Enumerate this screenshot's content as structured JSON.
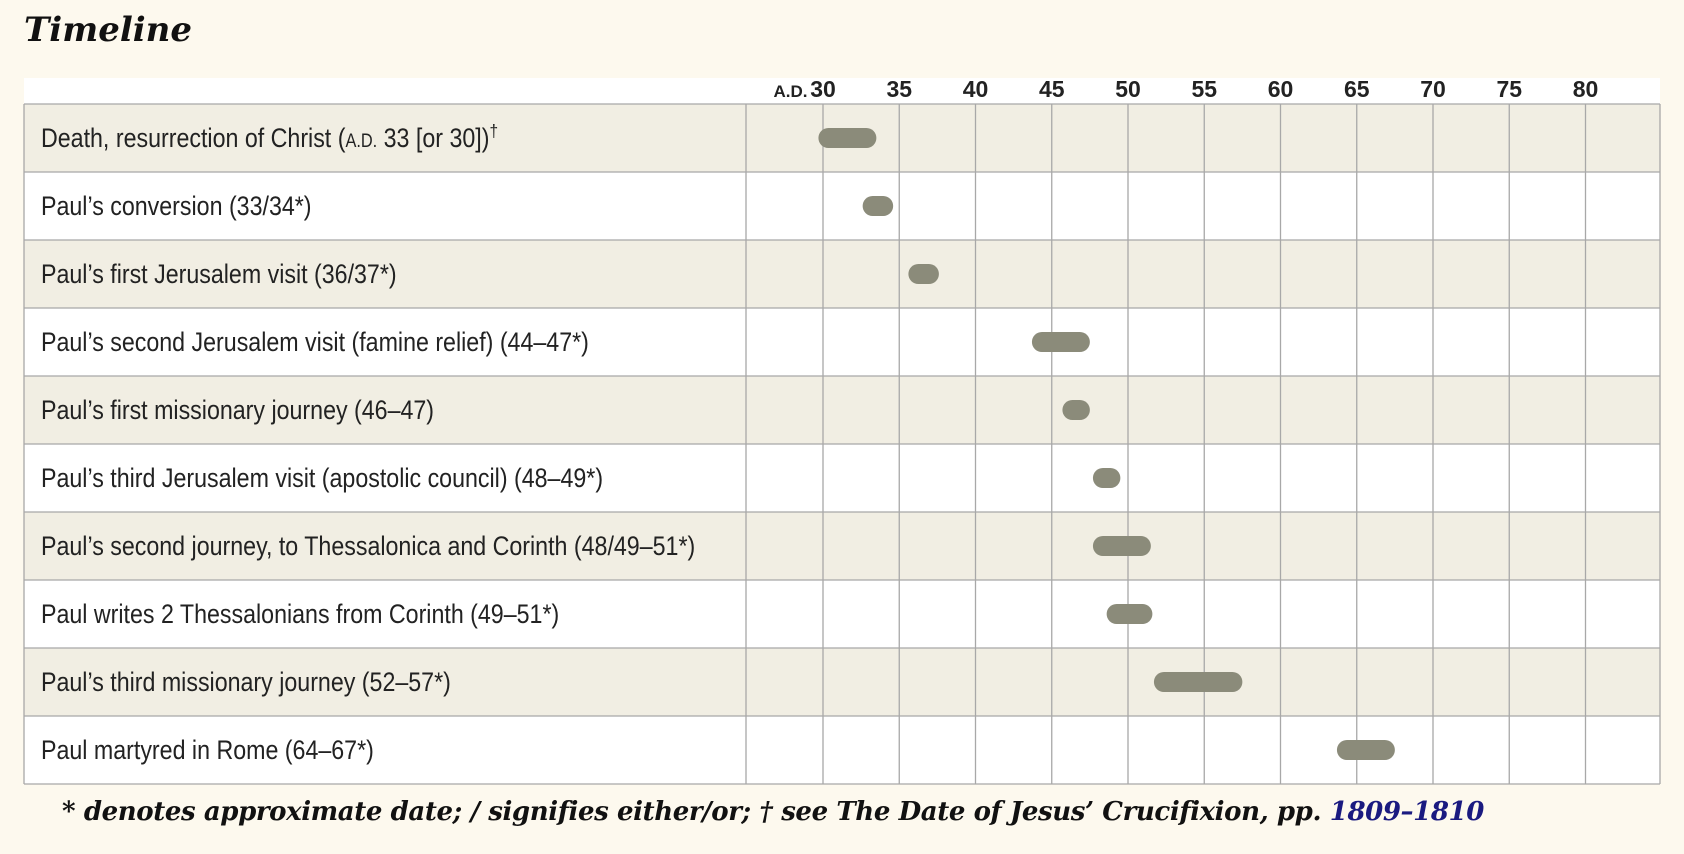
{
  "title": "Timeline",
  "colors": {
    "page_bg": "#fdf9ee",
    "row_shaded": "#f1eee3",
    "row_plain": "#ffffff",
    "grid": "#a8a8a8",
    "bar": "#8b8b7a",
    "link": "#1a1a80"
  },
  "chart_data": {
    "type": "bar",
    "orientation": "horizontal-range",
    "axis_prefix_label": "A.D.",
    "x_ticks": [
      30,
      35,
      40,
      45,
      50,
      55,
      60,
      65,
      70,
      75,
      80
    ],
    "xlim": [
      25,
      85
    ],
    "grid": true,
    "rows": [
      {
        "label": "Death, resurrection of Christ (",
        "smallcaps": "A.D.",
        "label_end": " 33 [or 30])",
        "sup": "†",
        "start": 29.7,
        "end": 33.5
      },
      {
        "label": "Paul’s conversion (33/34*)",
        "start": 32.6,
        "end": 34.6
      },
      {
        "label": "Paul’s first Jerusalem visit (36/37*)",
        "start": 35.6,
        "end": 37.6
      },
      {
        "label": "Paul’s second Jerusalem visit (famine relief) (44–47*)",
        "start": 43.7,
        "end": 47.5
      },
      {
        "label": "Paul’s first missionary journey (46–47)",
        "start": 45.7,
        "end": 47.5
      },
      {
        "label": "Paul’s third Jerusalem visit (apostolic council) (48–49*)",
        "start": 47.7,
        "end": 49.5
      },
      {
        "label": "Paul’s second journey, to Thessalonica and Corinth (48/49–51*)",
        "start": 47.7,
        "end": 51.5
      },
      {
        "label": "Paul writes 2 Thessalonians from Corinth (49–51*)",
        "start": 48.6,
        "end": 51.6
      },
      {
        "label": "Paul’s third missionary journey (52–57*)",
        "start": 51.7,
        "end": 57.5
      },
      {
        "label": "Paul martyred in Rome (64–67*)",
        "start": 63.7,
        "end": 67.5
      }
    ]
  },
  "footnote": {
    "text": "* denotes approximate date; / signifies either/or; † see The Date of Jesus’ Crucifixion, pp. ",
    "link": "1809–1810"
  }
}
